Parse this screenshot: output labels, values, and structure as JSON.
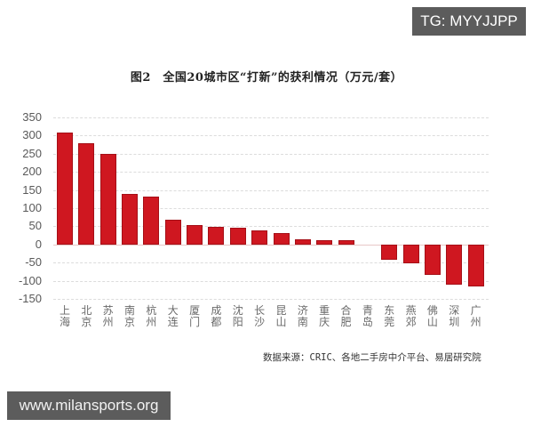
{
  "badges": {
    "top_right": "TG: MYYJJPP",
    "bottom_left": "www.milansports.org"
  },
  "chart_data": {
    "type": "bar",
    "title": "图2　全国20城市区“打新”的获利情况（万元/套）",
    "xlabel": "",
    "ylabel": "",
    "ylim": [
      -150,
      350
    ],
    "yticks": [
      350,
      300,
      250,
      200,
      150,
      100,
      50,
      0,
      -50,
      -100,
      -150
    ],
    "grid": true,
    "legend": null,
    "color": "#cf1720",
    "categories": [
      "上海",
      "北京",
      "苏州",
      "南京",
      "杭州",
      "大连",
      "厦门",
      "成都",
      "沈阳",
      "长沙",
      "昆山",
      "济南",
      "重庆",
      "合肥",
      "青岛",
      "东莞",
      "燕郊",
      "佛山",
      "深圳",
      "广州"
    ],
    "category_lines": [
      [
        "上",
        "海"
      ],
      [
        "北",
        "京"
      ],
      [
        "苏",
        "州"
      ],
      [
        "南",
        "京"
      ],
      [
        "杭",
        "州"
      ],
      [
        "大",
        "连"
      ],
      [
        "厦",
        "门"
      ],
      [
        "成",
        "都"
      ],
      [
        "沈",
        "阳"
      ],
      [
        "长",
        "沙"
      ],
      [
        "昆",
        "山"
      ],
      [
        "济",
        "南"
      ],
      [
        "重",
        "庆"
      ],
      [
        "合",
        "肥"
      ],
      [
        "青",
        "岛"
      ],
      [
        "东",
        "莞"
      ],
      [
        "燕",
        "郊"
      ],
      [
        "佛",
        "山"
      ],
      [
        "深",
        "圳"
      ],
      [
        "广",
        "州"
      ]
    ],
    "values": [
      308,
      280,
      249,
      139,
      131,
      69,
      54,
      49,
      47,
      38,
      31,
      14,
      12,
      12,
      0,
      -43,
      -52,
      -85,
      -111,
      -115
    ],
    "source": "数据来源：CRIC、各地二手房中介平台、易居研究院"
  }
}
